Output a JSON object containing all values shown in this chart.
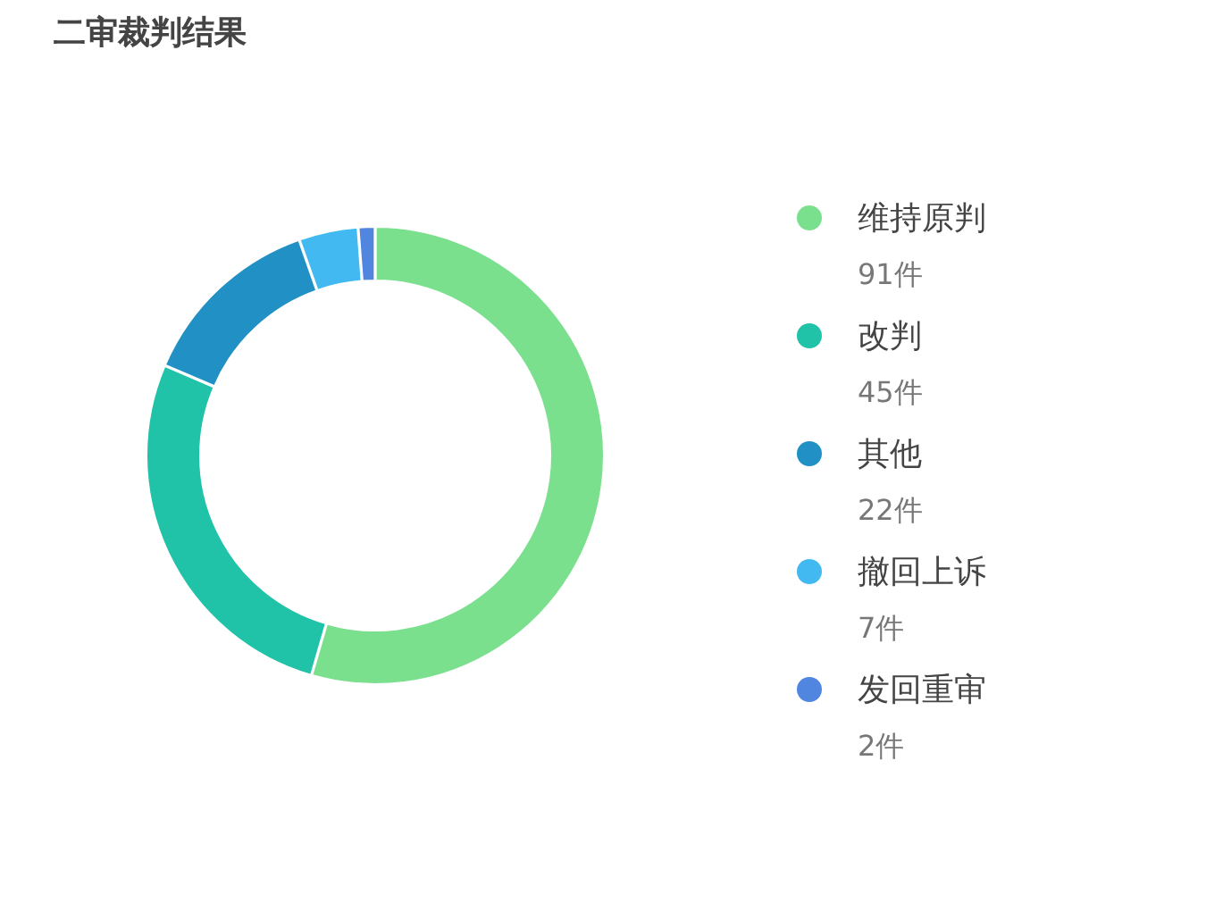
{
  "chart_data": {
    "type": "donut",
    "title": "二审裁判结果",
    "categories": [
      "维持原判",
      "改判",
      "其他",
      "撤回上诉",
      "发回重审"
    ],
    "values": [
      91,
      45,
      22,
      7,
      2
    ],
    "value_labels": [
      "91件",
      "45件",
      "22件",
      "7件",
      "2件"
    ],
    "colors": [
      "#7be08e",
      "#20c2a8",
      "#2190c4",
      "#42b9f0",
      "#5085e0"
    ],
    "legend": "right"
  }
}
